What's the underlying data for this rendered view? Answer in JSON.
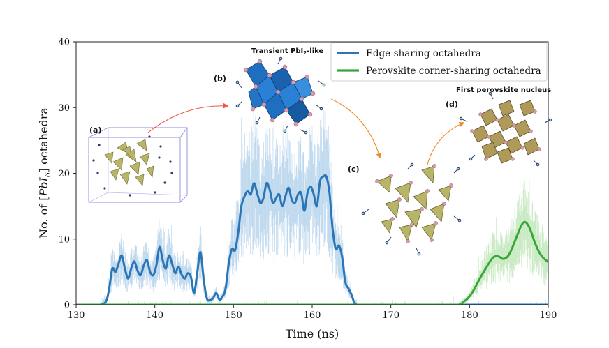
{
  "chart_data": {
    "type": "line",
    "xlabel": "Time (ns)",
    "ylabel_prefix": "No. of [",
    "ylabel_formula": "PbI",
    "ylabel_subscript": "6",
    "ylabel_suffix": "] octahedra",
    "xlim": [
      130,
      190
    ],
    "ylim": [
      0,
      40
    ],
    "xticks": [
      130,
      140,
      150,
      160,
      170,
      180,
      190
    ],
    "yticks": [
      0,
      10,
      20,
      30,
      40
    ],
    "legend_position": "top-right",
    "series": [
      {
        "name": "Edge-sharing octahedra",
        "color": "#2a76b6",
        "raw_color": "#a8cbe8",
        "x": [
          130,
          131,
          132,
          133,
          133.8,
          134.2,
          134.6,
          135,
          135.4,
          135.8,
          136.2,
          136.6,
          137,
          137.4,
          137.8,
          138.2,
          138.6,
          139,
          139.4,
          139.8,
          140.2,
          140.6,
          141,
          141.4,
          141.8,
          142.2,
          142.6,
          143,
          143.4,
          143.8,
          144.2,
          144.6,
          145,
          145.4,
          145.8,
          146.2,
          146.6,
          147,
          147.4,
          147.8,
          148.2,
          148.6,
          149,
          149.4,
          149.8,
          150.2,
          150.6,
          151,
          151.4,
          151.8,
          152.2,
          152.6,
          153,
          153.4,
          153.8,
          154.2,
          154.6,
          155,
          155.4,
          155.8,
          156.2,
          156.6,
          157,
          157.4,
          157.8,
          158.2,
          158.6,
          159,
          159.4,
          159.8,
          160.2,
          160.6,
          161,
          161.4,
          161.8,
          162.2,
          162.6,
          163,
          163.4,
          163.8,
          164.2,
          164.6,
          165,
          165.4,
          165.8,
          166.2,
          166.6,
          167,
          168,
          170,
          175,
          180,
          185,
          190
        ],
        "values": [
          0,
          0,
          0,
          0,
          0.5,
          2.5,
          5.5,
          5,
          6.3,
          7.5,
          5.5,
          4,
          5.5,
          6.6,
          5.2,
          4.5,
          6,
          6.8,
          5,
          4.5,
          6,
          8.8,
          6.8,
          5.5,
          7.5,
          6.2,
          4.8,
          5.8,
          4.6,
          4,
          4.8,
          4.2,
          1.8,
          5,
          8,
          4,
          1,
          0.7,
          1,
          1.8,
          0.8,
          1.2,
          2.5,
          6.3,
          8.5,
          8.3,
          11,
          15,
          16.5,
          17.3,
          16.8,
          18.5,
          17,
          15.5,
          16.2,
          18.5,
          17.5,
          15.5,
          16.2,
          16.8,
          15,
          16.5,
          17.8,
          16,
          15.5,
          16.8,
          17,
          14.3,
          17,
          18,
          16.8,
          15,
          18.8,
          19.5,
          19.5,
          17,
          11.5,
          8.5,
          9,
          7.3,
          3.5,
          2.5,
          1.5,
          0.2,
          0,
          0,
          0,
          0,
          0,
          0,
          0,
          0,
          0,
          0
        ]
      },
      {
        "name": "Perovskite corner-sharing octahedra",
        "color": "#3aa53a",
        "raw_color": "#b5e3ad",
        "x": [
          130,
          150,
          170,
          178,
          178.6,
          179,
          179.4,
          179.8,
          180.2,
          180.6,
          181,
          181.4,
          181.8,
          182.2,
          182.6,
          183,
          183.4,
          183.8,
          184.2,
          184.6,
          185,
          185.4,
          185.8,
          186.2,
          186.6,
          187,
          187.4,
          187.8,
          188.2,
          188.6,
          189,
          189.4,
          190
        ],
        "values": [
          0,
          0,
          0,
          0,
          0,
          0.2,
          0.6,
          1,
          1.6,
          2.4,
          3.3,
          4.2,
          5,
          5.8,
          6.6,
          7.2,
          7.4,
          7.3,
          7,
          7.1,
          7.6,
          8.6,
          9.8,
          11,
          12.1,
          12.6,
          12.2,
          11.2,
          9.8,
          8.6,
          7.7,
          7.1,
          6.5
        ]
      }
    ],
    "annotations": [
      {
        "label": "(a)"
      },
      {
        "label": "(b)",
        "title_prefix": "Transient PbI",
        "title_sub": "2",
        "title_suffix": "-like"
      },
      {
        "label": "(c)"
      },
      {
        "label": "(d)",
        "title": "First perovskite nucleus"
      }
    ]
  },
  "colors": {
    "arrow_red": "#f0584a",
    "arrow_orange": "#f08a2a",
    "tetra_yellow": "#b8b468",
    "octa_blue": "#1f6fc0",
    "atom_pink": "#d89aa8",
    "box_purple": "#8c8ce0"
  }
}
